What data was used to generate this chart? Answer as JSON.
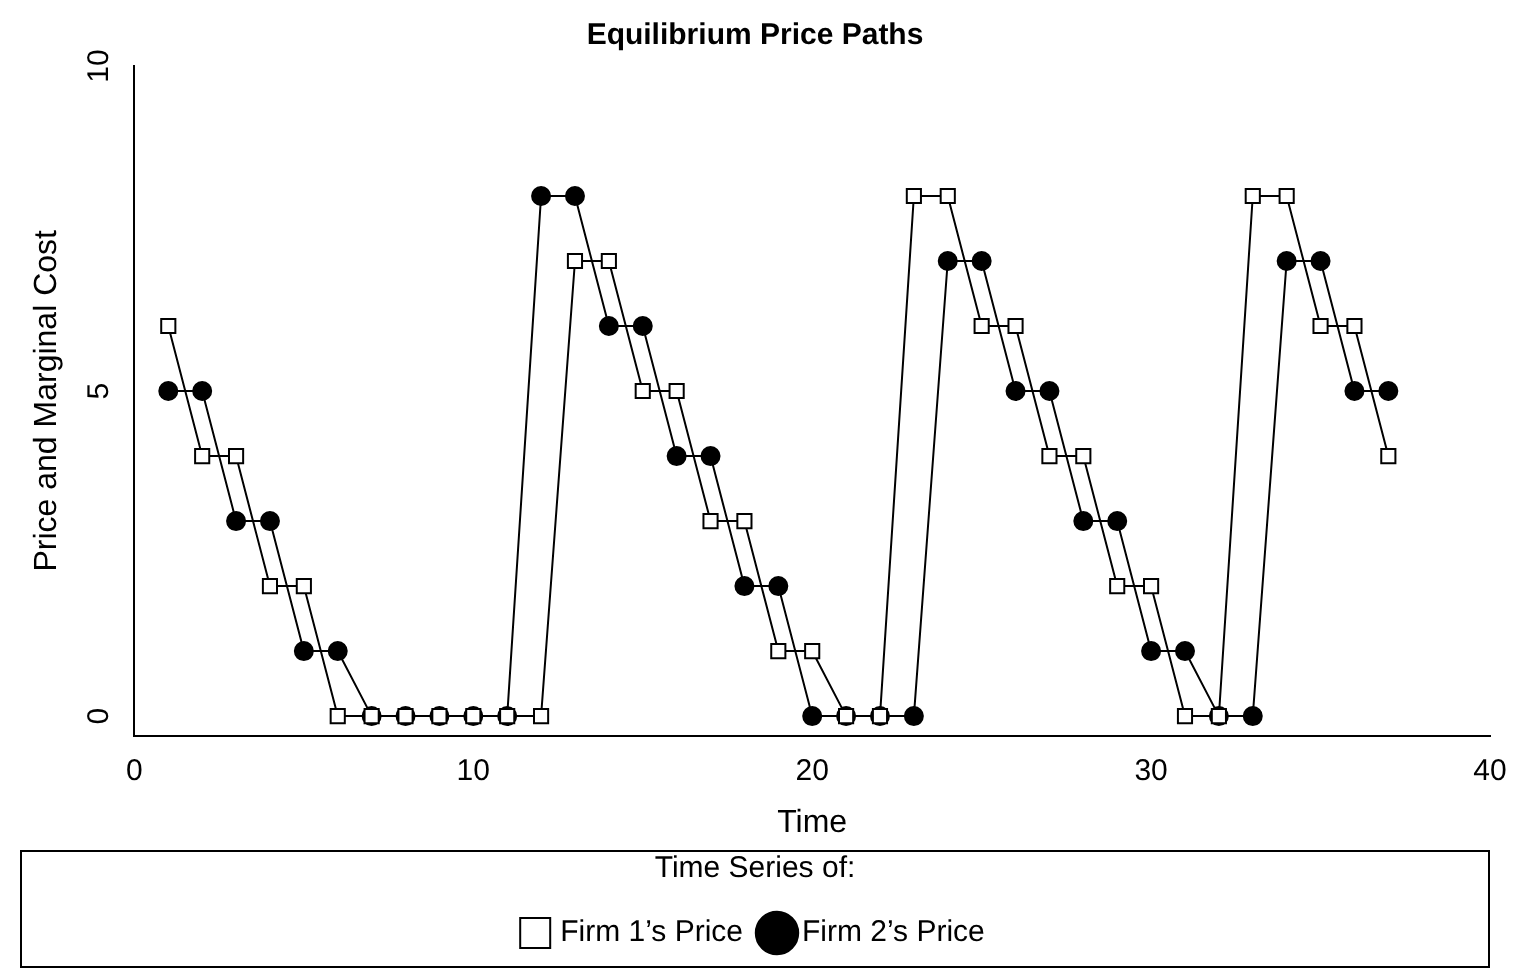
{
  "chart_data": {
    "type": "line",
    "title": "Equilibrium Price Paths",
    "xlabel": "Time",
    "ylabel": "Price and Marginal Cost",
    "legend_title": "Time Series of:",
    "x": [
      1,
      2,
      3,
      4,
      5,
      6,
      7,
      8,
      9,
      10,
      11,
      12,
      13,
      14,
      15,
      16,
      17,
      18,
      19,
      20,
      21,
      22,
      23,
      24,
      25,
      26,
      27,
      28,
      29,
      30,
      31,
      32,
      33,
      34,
      35,
      36,
      37
    ],
    "series": [
      {
        "name": "Firm 1’s Price",
        "color": "#000000",
        "marker": "square",
        "values": [
          6,
          4,
          4,
          2,
          2,
          0,
          0,
          0,
          0,
          0,
          0,
          0,
          7,
          7,
          5,
          5,
          3,
          3,
          1,
          1,
          0,
          0,
          8,
          8,
          6,
          6,
          4,
          4,
          2,
          2,
          0,
          0,
          8,
          8,
          6,
          6,
          4
        ]
      },
      {
        "name": "Firm 2’s Price",
        "color": "#000000",
        "marker": "circle",
        "values": [
          5,
          5,
          3,
          3,
          1,
          1,
          0,
          0,
          0,
          0,
          0,
          8,
          8,
          6,
          6,
          4,
          4,
          2,
          2,
          0,
          0,
          0,
          0,
          7,
          7,
          5,
          5,
          3,
          3,
          1,
          1,
          0,
          0,
          7,
          7,
          5,
          5
        ]
      }
    ],
    "xlim": [
      0,
      40
    ],
    "xticks": [
      0,
      10,
      20,
      30,
      40
    ],
    "ylim": [
      -0.3,
      10
    ],
    "yticks": [
      0,
      5,
      10
    ],
    "grid": false,
    "legend": "bottom",
    "line_style": "solid"
  }
}
